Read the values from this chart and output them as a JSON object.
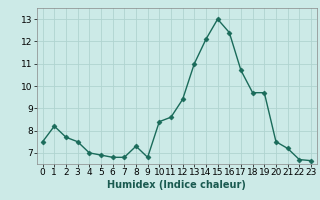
{
  "x": [
    0,
    1,
    2,
    3,
    4,
    5,
    6,
    7,
    8,
    9,
    10,
    11,
    12,
    13,
    14,
    15,
    16,
    17,
    18,
    19,
    20,
    21,
    22,
    23
  ],
  "y": [
    7.5,
    8.2,
    7.7,
    7.5,
    7.0,
    6.9,
    6.8,
    6.8,
    7.3,
    6.8,
    8.4,
    8.6,
    9.4,
    11.0,
    12.1,
    13.0,
    12.4,
    10.7,
    9.7,
    9.7,
    7.5,
    7.2,
    6.7,
    6.65
  ],
  "line_color": "#1a6b5a",
  "marker": "D",
  "markersize": 2.5,
  "linewidth": 1.0,
  "xlabel": "Humidex (Indice chaleur)",
  "xlim": [
    -0.5,
    23.5
  ],
  "ylim": [
    6.5,
    13.5
  ],
  "yticks": [
    7,
    8,
    9,
    10,
    11,
    12,
    13
  ],
  "xticks": [
    0,
    1,
    2,
    3,
    4,
    5,
    6,
    7,
    8,
    9,
    10,
    11,
    12,
    13,
    14,
    15,
    16,
    17,
    18,
    19,
    20,
    21,
    22,
    23
  ],
  "bg_color": "#cceae7",
  "grid_color": "#b0d4d0",
  "xlabel_fontsize": 7,
  "tick_fontsize": 6.5
}
